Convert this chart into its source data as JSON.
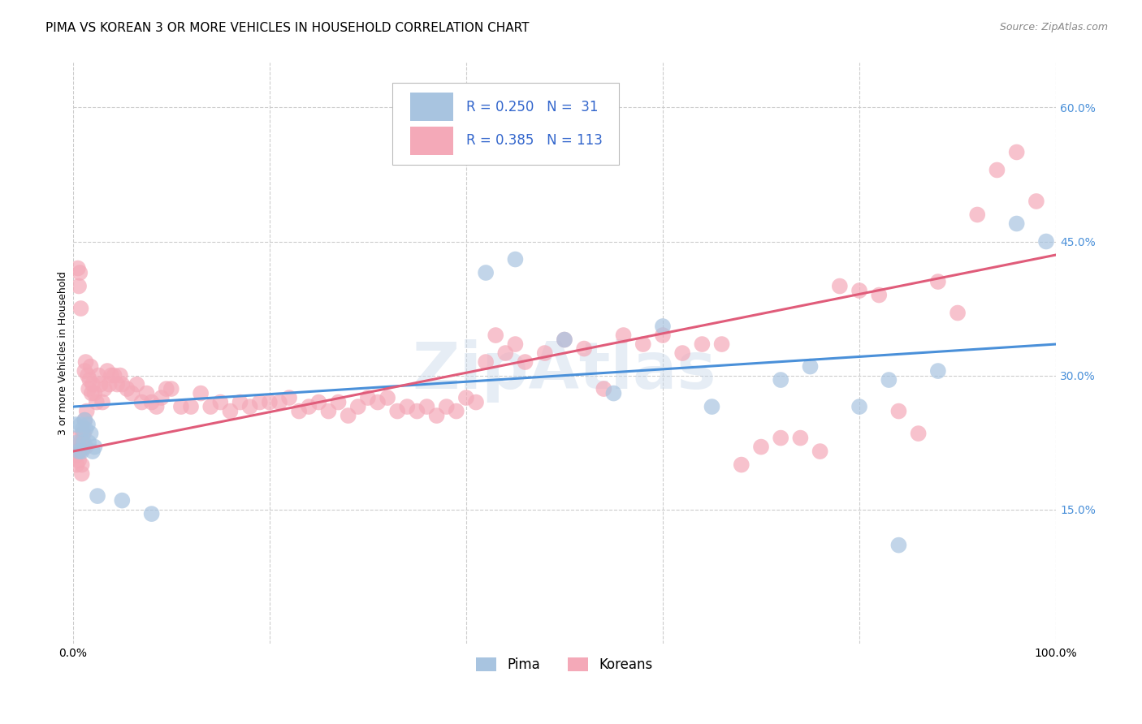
{
  "title": "PIMA VS KOREAN 3 OR MORE VEHICLES IN HOUSEHOLD CORRELATION CHART",
  "source": "Source: ZipAtlas.com",
  "ylabel": "3 or more Vehicles in Household",
  "xlim": [
    0.0,
    1.0
  ],
  "ylim": [
    0.0,
    0.65
  ],
  "xtick_positions": [
    0.0,
    0.2,
    0.4,
    0.6,
    0.8,
    1.0
  ],
  "xtick_labels": [
    "0.0%",
    "",
    "",
    "",
    "",
    "100.0%"
  ],
  "ytick_positions": [
    0.15,
    0.3,
    0.45,
    0.6
  ],
  "ytick_labels": [
    "15.0%",
    "30.0%",
    "45.0%",
    "60.0%"
  ],
  "pima_color": "#a8c4e0",
  "korean_color": "#f4a9b8",
  "pima_line_color": "#4a90d9",
  "korean_line_color": "#e05c7a",
  "legend_text_color": "#3366cc",
  "pima_R": 0.25,
  "pima_N": 31,
  "korean_R": 0.385,
  "korean_N": 113,
  "background_color": "#ffffff",
  "grid_color": "#cccccc",
  "title_fontsize": 11,
  "axis_label_fontsize": 9,
  "tick_fontsize": 10,
  "pima_x": [
    0.003,
    0.005,
    0.006,
    0.008,
    0.009,
    0.01,
    0.011,
    0.012,
    0.013,
    0.015,
    0.016,
    0.018,
    0.02,
    0.022,
    0.025,
    0.05,
    0.08,
    0.42,
    0.45,
    0.5,
    0.55,
    0.6,
    0.65,
    0.72,
    0.75,
    0.8,
    0.83,
    0.84,
    0.88,
    0.96,
    0.99
  ],
  "pima_y": [
    0.245,
    0.225,
    0.215,
    0.245,
    0.215,
    0.24,
    0.225,
    0.25,
    0.24,
    0.245,
    0.225,
    0.235,
    0.215,
    0.22,
    0.165,
    0.16,
    0.145,
    0.415,
    0.43,
    0.34,
    0.28,
    0.355,
    0.265,
    0.295,
    0.31,
    0.265,
    0.295,
    0.11,
    0.305,
    0.47,
    0.45
  ],
  "korean_x": [
    0.002,
    0.003,
    0.004,
    0.005,
    0.006,
    0.007,
    0.008,
    0.009,
    0.01,
    0.011,
    0.012,
    0.013,
    0.014,
    0.015,
    0.016,
    0.017,
    0.018,
    0.019,
    0.02,
    0.022,
    0.024,
    0.026,
    0.028,
    0.03,
    0.032,
    0.035,
    0.037,
    0.039,
    0.042,
    0.045,
    0.048,
    0.05,
    0.055,
    0.06,
    0.065,
    0.07,
    0.075,
    0.08,
    0.085,
    0.09,
    0.095,
    0.1,
    0.11,
    0.12,
    0.13,
    0.14,
    0.15,
    0.16,
    0.17,
    0.18,
    0.19,
    0.2,
    0.21,
    0.22,
    0.23,
    0.24,
    0.25,
    0.26,
    0.27,
    0.28,
    0.29,
    0.3,
    0.31,
    0.32,
    0.33,
    0.34,
    0.35,
    0.36,
    0.37,
    0.38,
    0.39,
    0.4,
    0.41,
    0.42,
    0.43,
    0.44,
    0.45,
    0.46,
    0.48,
    0.5,
    0.52,
    0.54,
    0.56,
    0.58,
    0.6,
    0.62,
    0.64,
    0.66,
    0.68,
    0.7,
    0.72,
    0.74,
    0.76,
    0.78,
    0.8,
    0.82,
    0.84,
    0.86,
    0.88,
    0.9,
    0.92,
    0.94,
    0.96,
    0.98,
    0.005,
    0.006,
    0.007,
    0.008,
    0.009,
    0.01,
    0.011,
    0.012,
    0.013
  ],
  "korean_y": [
    0.215,
    0.21,
    0.2,
    0.23,
    0.205,
    0.215,
    0.225,
    0.19,
    0.235,
    0.22,
    0.305,
    0.315,
    0.26,
    0.3,
    0.285,
    0.295,
    0.31,
    0.28,
    0.29,
    0.28,
    0.27,
    0.3,
    0.29,
    0.27,
    0.285,
    0.305,
    0.29,
    0.3,
    0.3,
    0.29,
    0.3,
    0.29,
    0.285,
    0.28,
    0.29,
    0.27,
    0.28,
    0.27,
    0.265,
    0.275,
    0.285,
    0.285,
    0.265,
    0.265,
    0.28,
    0.265,
    0.27,
    0.26,
    0.27,
    0.265,
    0.27,
    0.27,
    0.27,
    0.275,
    0.26,
    0.265,
    0.27,
    0.26,
    0.27,
    0.255,
    0.265,
    0.275,
    0.27,
    0.275,
    0.26,
    0.265,
    0.26,
    0.265,
    0.255,
    0.265,
    0.26,
    0.275,
    0.27,
    0.315,
    0.345,
    0.325,
    0.335,
    0.315,
    0.325,
    0.34,
    0.33,
    0.285,
    0.345,
    0.335,
    0.345,
    0.325,
    0.335,
    0.335,
    0.2,
    0.22,
    0.23,
    0.23,
    0.215,
    0.4,
    0.395,
    0.39,
    0.26,
    0.235,
    0.405,
    0.37,
    0.48,
    0.53,
    0.55,
    0.495,
    0.42,
    0.4,
    0.415,
    0.375,
    0.2,
    0.225,
    0.235,
    0.25,
    0.22
  ]
}
